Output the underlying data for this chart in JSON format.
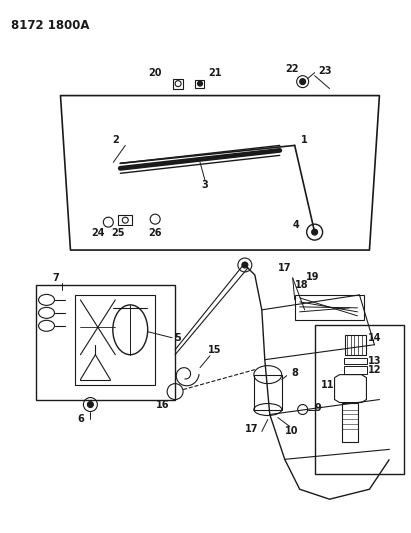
{
  "title_code": "8172 1800A",
  "bg_color": "#ffffff",
  "line_color": "#1a1a1a",
  "fig_width": 4.11,
  "fig_height": 5.33,
  "dpi": 100,
  "title_fontsize": 8.5,
  "label_fontsize": 7,
  "label_bold": true,
  "gray": "#888888",
  "darkgray": "#555555"
}
